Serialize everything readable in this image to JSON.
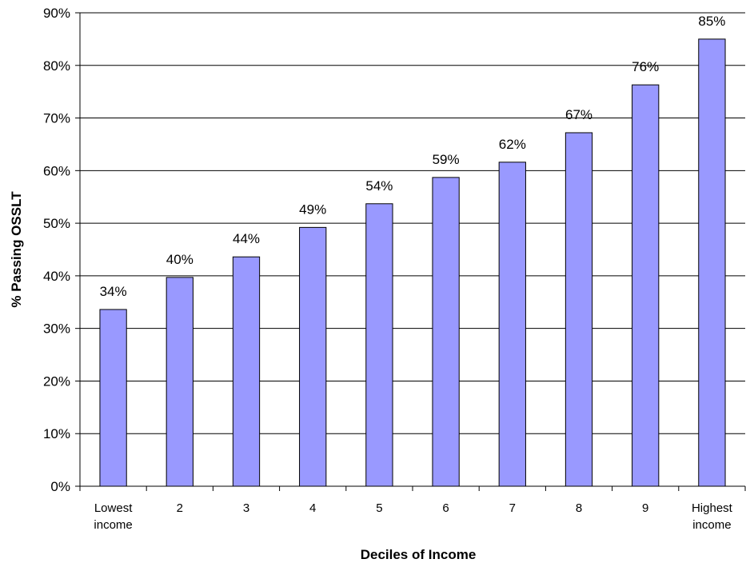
{
  "chart_data": {
    "type": "bar",
    "xlabel": "Deciles of Income",
    "ylabel": "% Passing OSSLT",
    "ylim": [
      0,
      90
    ],
    "yticks": [
      0,
      10,
      20,
      30,
      40,
      50,
      60,
      70,
      80,
      90
    ],
    "ytick_suffix": "%",
    "grid": true,
    "categories": [
      [
        "Lowest",
        "income"
      ],
      [
        "2"
      ],
      [
        "3"
      ],
      [
        "4"
      ],
      [
        "5"
      ],
      [
        "6"
      ],
      [
        "7"
      ],
      [
        "8"
      ],
      [
        "9"
      ],
      [
        "Highest",
        "income"
      ]
    ],
    "values": [
      33.6,
      39.7,
      43.6,
      49.2,
      53.7,
      58.7,
      61.6,
      67.2,
      76.3,
      85.0
    ],
    "data_labels": [
      "34%",
      "40%",
      "44%",
      "49%",
      "54%",
      "59%",
      "62%",
      "67%",
      "76%",
      "85%"
    ],
    "colors": {
      "bar_fill": "#9999ff",
      "bar_stroke": "#000000",
      "grid": "#000000",
      "axis": "#000000"
    }
  }
}
